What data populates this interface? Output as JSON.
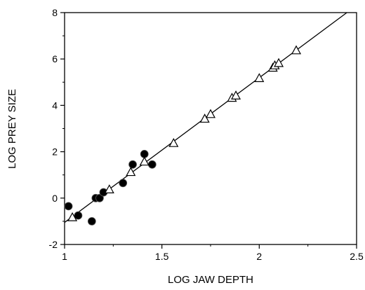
{
  "chart_data": {
    "type": "scatter",
    "xlabel": "LOG JAW DEPTH",
    "ylabel": "LOG PREY SIZE",
    "xlim": [
      1,
      2.5
    ],
    "ylim": [
      -2,
      8
    ],
    "x_ticks": [
      1,
      1.5,
      2,
      2.5
    ],
    "x_tick_labels": [
      "1",
      "1.5",
      "2",
      "2.5"
    ],
    "y_ticks": [
      -2,
      0,
      2,
      4,
      6,
      8
    ],
    "y_tick_labels": [
      "-2",
      "0",
      "2",
      "4",
      "6",
      "8"
    ],
    "grid": false,
    "series": [
      {
        "marker": "filled-circle",
        "color": "#000000",
        "points": [
          [
            1.02,
            -0.35
          ],
          [
            1.07,
            -0.75
          ],
          [
            1.14,
            -1.0
          ],
          [
            1.16,
            0.0
          ],
          [
            1.18,
            0.0
          ],
          [
            1.2,
            0.25
          ],
          [
            1.3,
            0.65
          ],
          [
            1.35,
            1.45
          ],
          [
            1.41,
            1.9
          ],
          [
            1.45,
            1.45
          ]
        ]
      },
      {
        "marker": "open-triangle",
        "color": "#000000",
        "points": [
          [
            1.04,
            -0.85
          ],
          [
            1.23,
            0.35
          ],
          [
            1.34,
            1.1
          ],
          [
            1.41,
            1.55
          ],
          [
            1.56,
            2.35
          ],
          [
            1.72,
            3.4
          ],
          [
            1.75,
            3.6
          ],
          [
            1.86,
            4.3
          ],
          [
            1.88,
            4.4
          ],
          [
            2.0,
            5.15
          ],
          [
            2.07,
            5.6
          ],
          [
            2.08,
            5.7
          ],
          [
            2.1,
            5.8
          ],
          [
            2.19,
            6.35
          ]
        ]
      }
    ],
    "regression_line": {
      "x": [
        1.0,
        2.45
      ],
      "y": [
        -1.05,
        8.0
      ],
      "color": "#000000"
    }
  }
}
